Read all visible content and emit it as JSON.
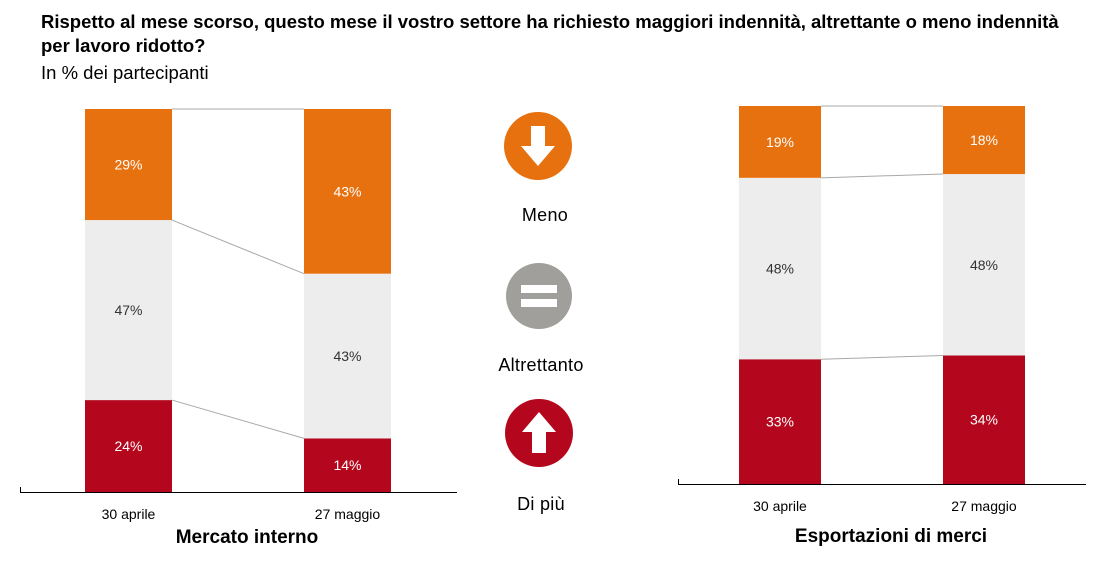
{
  "title": "Rispetto al mese scorso, questo mese il vostro settore ha richiesto maggiori indennità, altrettante o meno indennità per lavoro ridotto?",
  "subtitle": "In % dei partecipanti",
  "legend": [
    {
      "key": "meno",
      "label": "Meno",
      "icon": "arrow-down-icon",
      "color": "#E8710F"
    },
    {
      "key": "altrettanto",
      "label": "Altrettanto",
      "icon": "equals-icon",
      "color": "#A19F9C"
    },
    {
      "key": "di_piu",
      "label": "Di più",
      "icon": "arrow-up-icon",
      "color": "#B4071E"
    }
  ],
  "colors": {
    "meno": "#E8710F",
    "altrettanto": "#EDEDED",
    "di_piu": "#B4071E",
    "connector": "#A8A8A8",
    "axis": "#000000"
  },
  "chart_data": [
    {
      "type": "bar",
      "stacked": true,
      "title": "Mercato interno",
      "categories": [
        "30 aprile",
        "27 maggio"
      ],
      "series": [
        {
          "name": "Di più",
          "key": "di_piu",
          "values": [
            24,
            14
          ]
        },
        {
          "name": "Altrettanto",
          "key": "altrettanto",
          "values": [
            47,
            43
          ]
        },
        {
          "name": "Meno",
          "key": "meno",
          "values": [
            29,
            43
          ]
        }
      ],
      "value_labels": [
        [
          "24%",
          "14%"
        ],
        [
          "47%",
          "43%"
        ],
        [
          "29%",
          "43%"
        ]
      ]
    },
    {
      "type": "bar",
      "stacked": true,
      "title": "Esportazioni di merci",
      "categories": [
        "30 aprile",
        "27 maggio"
      ],
      "series": [
        {
          "name": "Di più",
          "key": "di_piu",
          "values": [
            33,
            34
          ]
        },
        {
          "name": "Altrettanto",
          "key": "altrettanto",
          "values": [
            48,
            48
          ]
        },
        {
          "name": "Meno",
          "key": "meno",
          "values": [
            19,
            18
          ]
        }
      ],
      "value_labels": [
        [
          "33%",
          "34%"
        ],
        [
          "48%",
          "48%"
        ],
        [
          "19%",
          "18%"
        ]
      ]
    }
  ]
}
